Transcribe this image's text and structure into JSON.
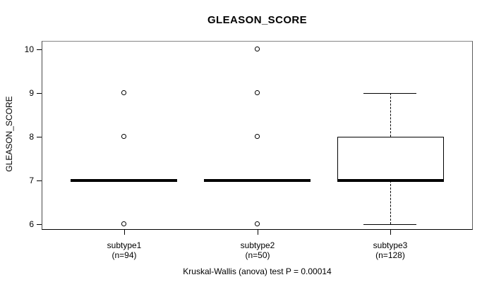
{
  "chart_data": {
    "type": "boxplot",
    "title": "GLEASON_SCORE",
    "ylabel": "GLEASON_SCORE",
    "xlabel": "",
    "caption": "Kruskal-Wallis (anova) test P = 0.00014",
    "yticks": [
      6,
      7,
      8,
      9,
      10
    ],
    "ylim": [
      5.87,
      10.19
    ],
    "xlim": [
      0.38,
      3.62
    ],
    "box_width": 0.8,
    "cap_width": 0.4,
    "grid": false,
    "legend": false,
    "groups": [
      {
        "name": "subtype1",
        "n": 94,
        "n_label": "(n=94)",
        "position": 1,
        "median": 7,
        "q1": 7,
        "q3": 7,
        "whisker_low": 7,
        "whisker_high": 7,
        "outliers": [
          9,
          8,
          6
        ]
      },
      {
        "name": "subtype2",
        "n": 50,
        "n_label": "(n=50)",
        "position": 2,
        "median": 7,
        "q1": 7,
        "q3": 7,
        "whisker_low": 7,
        "whisker_high": 7,
        "outliers": [
          10,
          9,
          8,
          6
        ]
      },
      {
        "name": "subtype3",
        "n": 128,
        "n_label": "(n=128)",
        "position": 3,
        "median": 7,
        "q1": 7,
        "q3": 8,
        "whisker_low": 6,
        "whisker_high": 9,
        "outliers": []
      }
    ],
    "stat_test": {
      "name": "Kruskal-Wallis (anova) test",
      "p_value": "0.00014"
    }
  }
}
